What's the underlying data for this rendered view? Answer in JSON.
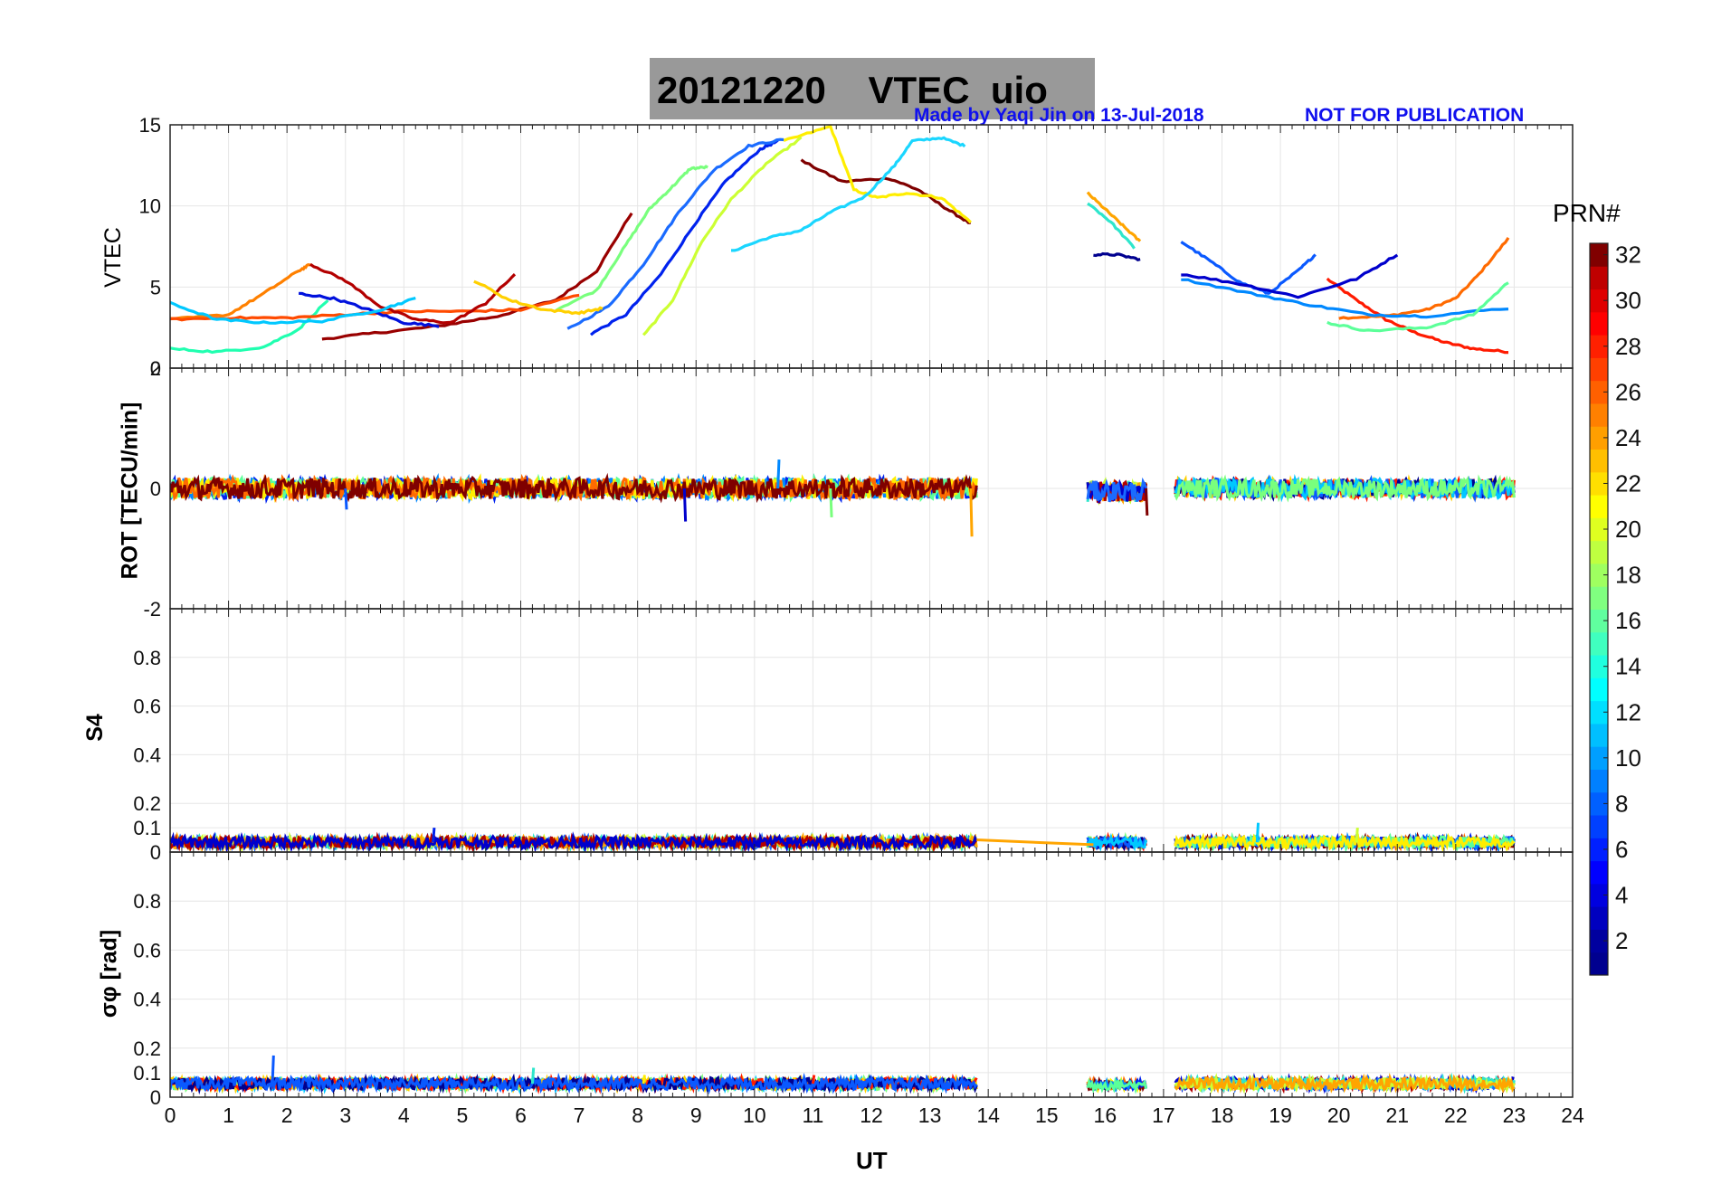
{
  "header": {
    "title": "20121220    VTEC  uio",
    "credit_left": "Made by Yaqi Jin on 13-Jul-2018",
    "credit_right": "NOT FOR PUBLICATION"
  },
  "colorbar": {
    "label": "PRN#",
    "ticks": [
      "2",
      "4",
      "6",
      "8",
      "10",
      "12",
      "14",
      "16",
      "18",
      "20",
      "22",
      "24",
      "26",
      "28",
      "30",
      "32"
    ],
    "range": [
      1,
      32
    ]
  },
  "xaxis": {
    "label": "UT",
    "ticks": [
      "0",
      "1",
      "2",
      "3",
      "4",
      "5",
      "6",
      "7",
      "8",
      "9",
      "10",
      "11",
      "12",
      "13",
      "14",
      "15",
      "16",
      "17",
      "18",
      "19",
      "20",
      "21",
      "22",
      "23",
      "24"
    ],
    "range": [
      0,
      24
    ]
  },
  "chart_data": [
    {
      "type": "line",
      "panel": "vtec",
      "ylabel": "VTEC",
      "ylim": [
        0,
        15
      ],
      "yticks": [
        "0",
        "5",
        "10",
        "15"
      ],
      "grid": true,
      "series": [
        {
          "name": "PRN 27",
          "color": "#ff1a00",
          "x": [
            19.8,
            20.3,
            20.8,
            21.3,
            21.8,
            22.3,
            22.9
          ],
          "y": [
            5.5,
            4.2,
            3.0,
            2.2,
            1.6,
            1.2,
            1.0
          ]
        },
        {
          "name": "PRN 25",
          "color": "#ff6a00",
          "x": [
            20.0,
            20.8,
            21.5,
            22.0,
            22.4,
            22.9
          ],
          "y": [
            3.1,
            3.2,
            3.6,
            4.3,
            5.8,
            8.0
          ]
        },
        {
          "name": "PRN 31",
          "color": "#990000",
          "x": [
            2.6,
            3.6,
            4.6,
            5.6,
            6.6,
            7.3,
            7.9
          ],
          "y": [
            1.8,
            2.2,
            2.6,
            3.2,
            4.2,
            6.0,
            9.6
          ]
        },
        {
          "name": "PRN 32",
          "color": "#7f0000",
          "x": [
            10.8,
            11.5,
            12.3,
            12.8,
            13.3,
            13.7
          ],
          "y": [
            12.8,
            11.5,
            11.7,
            11.0,
            9.8,
            8.9
          ]
        },
        {
          "name": "PRN 20",
          "color": "#ffee00",
          "x": [
            10.5,
            11.3,
            11.7,
            12.1,
            12.6,
            13.2,
            13.7
          ],
          "y": [
            14.0,
            14.9,
            11.0,
            10.5,
            10.8,
            10.5,
            9.0
          ]
        },
        {
          "name": "PRN 5",
          "color": "#0022ee",
          "x": [
            7.2,
            7.8,
            8.4,
            9.0,
            9.5,
            10.1,
            10.4
          ],
          "y": [
            2.1,
            3.3,
            5.8,
            9.0,
            11.5,
            13.5,
            14.0
          ]
        },
        {
          "name": "PRN 8",
          "color": "#1a6bff",
          "x": [
            6.8,
            7.5,
            8.1,
            8.7,
            9.3,
            9.9,
            10.5
          ],
          "y": [
            2.4,
            3.8,
            6.4,
            9.6,
            12.2,
            13.7,
            14.1
          ]
        },
        {
          "name": "PRN 11",
          "color": "#1ad6ff",
          "x": [
            9.6,
            10.2,
            10.8,
            11.3,
            11.9,
            12.4,
            12.7,
            13.2,
            13.6
          ],
          "y": [
            7.2,
            8.0,
            8.5,
            9.6,
            10.6,
            12.5,
            14.0,
            14.2,
            13.7
          ]
        },
        {
          "name": "PRN 17",
          "color": "#79ff7d",
          "x": [
            6.6,
            7.3,
            7.8,
            8.2,
            8.6,
            8.9,
            9.2
          ],
          "y": [
            3.6,
            4.8,
            7.6,
            9.8,
            11.2,
            12.3,
            12.4
          ]
        },
        {
          "name": "PRN 19",
          "color": "#ccff33",
          "x": [
            8.1,
            8.6,
            9.1,
            9.6,
            10.2,
            10.8
          ],
          "y": [
            2.0,
            4.2,
            7.8,
            10.4,
            12.6,
            14.2
          ]
        },
        {
          "name": "PRN 23",
          "color": "#ffa500",
          "x": [
            15.7,
            16.0,
            16.3,
            16.6
          ],
          "y": [
            10.8,
            9.8,
            8.8,
            7.8
          ]
        },
        {
          "name": "PRN 13",
          "color": "#2ee6cc",
          "x": [
            15.7,
            16.1,
            16.5
          ],
          "y": [
            10.2,
            9.0,
            7.4
          ]
        },
        {
          "name": "PRN 9",
          "color": "#0a59ff",
          "x": [
            17.3,
            17.8,
            18.3,
            18.8,
            19.3,
            19.6
          ],
          "y": [
            7.8,
            6.6,
            5.3,
            4.6,
            6.0,
            7.0
          ]
        },
        {
          "name": "PRN 3",
          "color": "#0000cc",
          "x": [
            17.3,
            18.3,
            19.3,
            20.3,
            21.0
          ],
          "y": [
            5.8,
            5.2,
            4.4,
            5.5,
            7.0
          ]
        },
        {
          "name": "PRN 10",
          "color": "#0088ff",
          "x": [
            17.3,
            18.5,
            19.5,
            20.5,
            21.5,
            22.9
          ],
          "y": [
            5.5,
            4.6,
            3.9,
            3.3,
            3.2,
            3.7
          ]
        },
        {
          "name": "PRN 16",
          "color": "#5cff99",
          "x": [
            19.8,
            20.5,
            21.5,
            22.3,
            22.9
          ],
          "y": [
            2.8,
            2.3,
            2.5,
            3.3,
            5.3
          ]
        },
        {
          "name": "PRN 1",
          "color": "#00008f",
          "x": [
            15.8,
            16.2,
            16.6
          ],
          "y": [
            7.0,
            7.0,
            6.7
          ]
        },
        {
          "name": "PRN 14",
          "color": "#20ffb0",
          "x": [
            0.0,
            0.8,
            1.6,
            2.2,
            2.7
          ],
          "y": [
            1.2,
            1.0,
            1.3,
            2.4,
            4.2
          ]
        },
        {
          "name": "PRN 24",
          "color": "#ff8000",
          "x": [
            0.0,
            1.0,
            1.6,
            2.2,
            2.4
          ],
          "y": [
            3.0,
            3.3,
            4.6,
            6.0,
            6.4
          ]
        },
        {
          "name": "PRN 26",
          "color": "#ff4a00",
          "x": [
            0.0,
            1.0,
            2.0,
            3.0,
            4.0,
            5.0,
            6.0,
            7.0
          ],
          "y": [
            3.0,
            3.1,
            3.1,
            3.3,
            3.5,
            3.5,
            3.6,
            4.5
          ]
        },
        {
          "name": "PRN 4",
          "color": "#0011dd",
          "x": [
            2.2,
            2.8,
            3.4,
            4.0,
            4.6
          ],
          "y": [
            4.6,
            4.3,
            3.6,
            2.8,
            2.6
          ]
        },
        {
          "name": "PRN 30",
          "color": "#b30000",
          "x": [
            2.4,
            3.0,
            3.6,
            4.2,
            4.8,
            5.4,
            5.9
          ],
          "y": [
            6.4,
            5.4,
            3.8,
            3.0,
            2.8,
            4.0,
            5.8
          ]
        },
        {
          "name": "PRN 12",
          "color": "#00c8ff",
          "x": [
            0.0,
            0.8,
            1.6,
            2.6,
            3.6,
            4.2
          ],
          "y": [
            4.0,
            3.0,
            2.8,
            2.9,
            3.6,
            4.3
          ]
        },
        {
          "name": "PRN 21",
          "color": "#ffd000",
          "x": [
            5.2,
            5.8,
            6.4,
            7.0,
            7.4
          ],
          "y": [
            5.4,
            4.2,
            3.6,
            3.4,
            3.7
          ]
        }
      ]
    },
    {
      "type": "line",
      "panel": "rot",
      "ylabel": "ROT [TECU/min]",
      "ylim": [
        -2,
        2
      ],
      "yticks": [
        "-2",
        "0",
        "2"
      ],
      "grid": true,
      "bands": [
        {
          "x": [
            0.0,
            13.8
          ],
          "center": 0.0,
          "spread": 0.22
        },
        {
          "x": [
            15.7,
            16.7
          ],
          "center": -0.05,
          "spread": 0.22
        },
        {
          "x": [
            17.2,
            23.0
          ],
          "center": 0.0,
          "spread": 0.2
        }
      ],
      "excursions": [
        {
          "x": 8.8,
          "y": -0.55
        },
        {
          "x": 10.4,
          "y": 0.48
        },
        {
          "x": 11.3,
          "y": -0.48
        },
        {
          "x": 13.7,
          "y": -0.8
        },
        {
          "x": 16.7,
          "y": -0.45
        },
        {
          "x": 3.0,
          "y": -0.35
        }
      ]
    },
    {
      "type": "line",
      "panel": "s4",
      "ylabel": "S4",
      "ylim": [
        0,
        1
      ],
      "yticks": [
        "0",
        "0.1",
        "0.2",
        "0.4",
        "0.6",
        "0.8"
      ],
      "grid": true,
      "bands": [
        {
          "x": [
            0.0,
            13.8
          ],
          "center": 0.04,
          "spread": 0.03
        },
        {
          "x": [
            15.7,
            16.7
          ],
          "center": 0.04,
          "spread": 0.03
        },
        {
          "x": [
            17.2,
            23.0
          ],
          "center": 0.04,
          "spread": 0.03
        }
      ],
      "segments": [
        {
          "x": [
            13.8,
            15.8
          ],
          "y": [
            0.05,
            0.03
          ]
        }
      ],
      "excursions": [
        {
          "x": 4.5,
          "y": 0.1
        },
        {
          "x": 18.6,
          "y": 0.12
        },
        {
          "x": 20.3,
          "y": 0.1
        }
      ]
    },
    {
      "type": "line",
      "panel": "sigma_phi",
      "ylabel": "σφ [rad]",
      "ylim": [
        0,
        1
      ],
      "yticks": [
        "0",
        "0.1",
        "0.2",
        "0.4",
        "0.6",
        "0.8"
      ],
      "grid": true,
      "bands": [
        {
          "x": [
            0.0,
            13.8
          ],
          "center": 0.055,
          "spread": 0.03
        },
        {
          "x": [
            15.7,
            16.7
          ],
          "center": 0.05,
          "spread": 0.025
        },
        {
          "x": [
            17.2,
            23.0
          ],
          "center": 0.055,
          "spread": 0.03
        }
      ],
      "excursions": [
        {
          "x": 1.75,
          "y": 0.17
        },
        {
          "x": 6.2,
          "y": 0.12
        },
        {
          "x": 8.1,
          "y": 0.09
        },
        {
          "x": 11.0,
          "y": 0.09
        }
      ]
    }
  ]
}
